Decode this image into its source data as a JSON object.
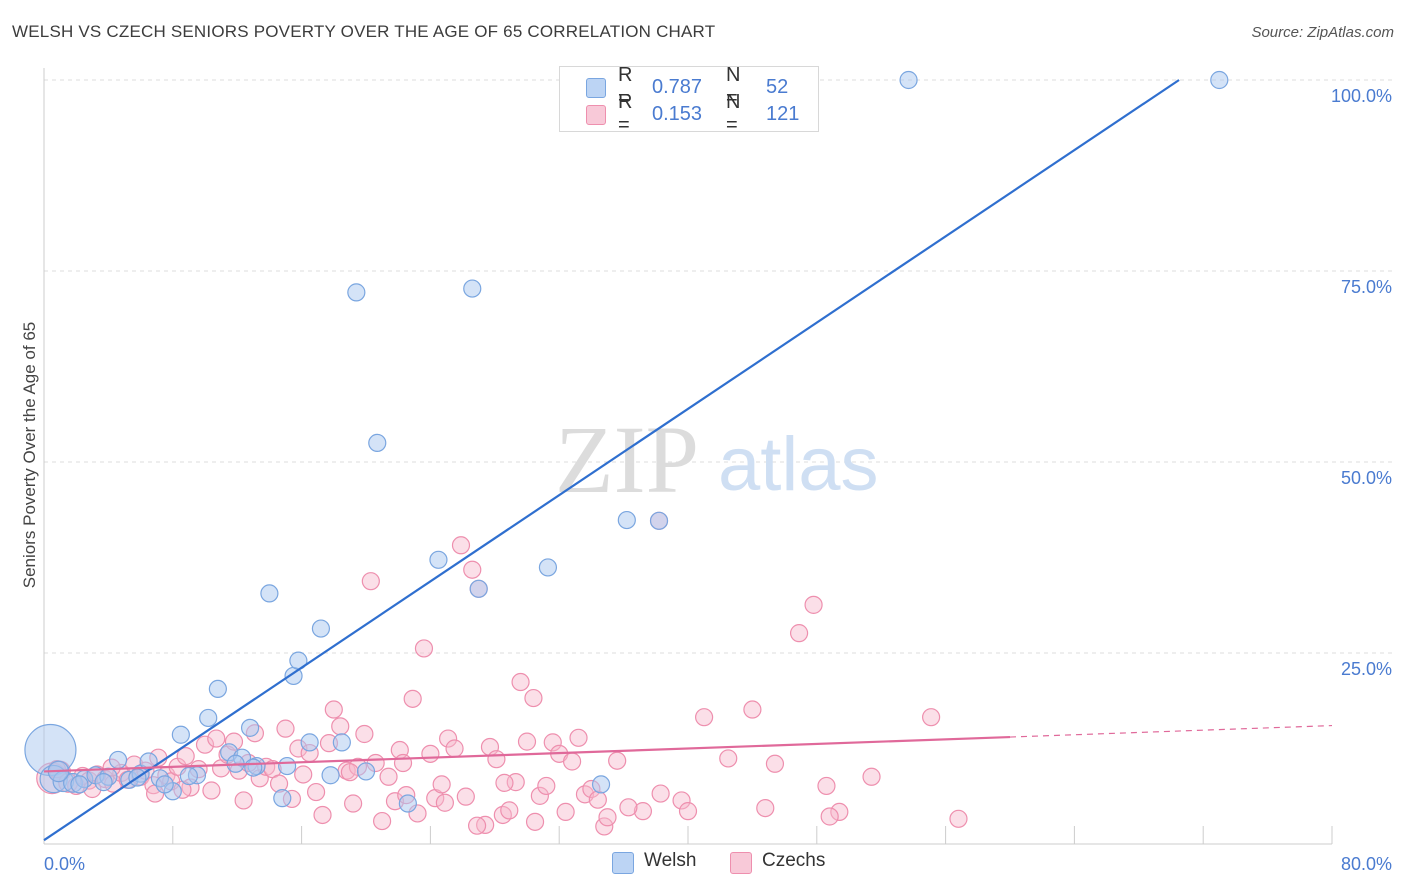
{
  "title": "WELSH VS CZECH SENIORS POVERTY OVER THE AGE OF 65 CORRELATION CHART",
  "source": "Source: ZipAtlas.com",
  "watermark": {
    "zip": "ZIP",
    "atlas": "atlas"
  },
  "legend": {
    "rows": [
      {
        "r_label": "R =",
        "r_value": "0.787",
        "n_label": "N =",
        "n_value": "52"
      },
      {
        "r_label": "R =",
        "r_value": "0.153",
        "n_label": "N =",
        "n_value": "121"
      }
    ]
  },
  "bottom_legend": [
    "Welsh",
    "Czechs"
  ],
  "colors": {
    "welsh_fill": "#a9c7f0",
    "welsh_stroke": "#7aa6e0",
    "welsh_line": "#2f6fcf",
    "czech_fill": "#f6b8cc",
    "czech_stroke": "#ee8fae",
    "czech_line": "#e0699a",
    "tick_label": "#4a7bd0",
    "grid": "#dddddd"
  },
  "chart_data": {
    "type": "scatter",
    "title": "WELSH VS CZECH SENIORS POVERTY OVER THE AGE OF 65 CORRELATION CHART",
    "xlabel": "",
    "ylabel": "Seniors Poverty Over the Age of 65",
    "xlim": [
      0,
      80
    ],
    "ylim": [
      0,
      100
    ],
    "x_tick_labels": [
      "0.0%",
      "80.0%"
    ],
    "y_tick_labels": [
      "25.0%",
      "50.0%",
      "75.0%",
      "100.0%"
    ],
    "y_tick_values": [
      25,
      50,
      75,
      100
    ],
    "grid": true,
    "legend_position": "top-center",
    "series": [
      {
        "name": "Welsh",
        "r": 0.787,
        "n": 52,
        "trend": {
          "x": [
            0,
            70.5
          ],
          "y": [
            0.5,
            100
          ]
        },
        "points": [
          [
            0.4,
            12.3,
            30
          ],
          [
            0.6,
            8.5,
            16
          ],
          [
            1.2,
            8.2,
            12
          ],
          [
            1.8,
            8.0,
            11
          ],
          [
            2.5,
            8.5,
            10
          ],
          [
            3.2,
            9.0,
            10
          ],
          [
            4.0,
            8.8,
            10
          ],
          [
            4.6,
            11.0,
            10
          ],
          [
            5.3,
            8.4,
            10
          ],
          [
            6.0,
            9.2,
            10
          ],
          [
            6.5,
            10.8,
            10
          ],
          [
            7.2,
            8.6,
            10
          ],
          [
            8.0,
            6.9,
            10
          ],
          [
            8.5,
            14.3,
            10
          ],
          [
            9.5,
            9.0,
            10
          ],
          [
            10.2,
            16.5,
            10
          ],
          [
            10.8,
            20.3,
            10
          ],
          [
            11.5,
            12.0,
            10
          ],
          [
            12.3,
            11.3,
            10
          ],
          [
            12.8,
            15.2,
            10
          ],
          [
            13.2,
            10.2,
            10
          ],
          [
            14.0,
            32.8,
            10
          ],
          [
            14.8,
            6.0,
            10
          ],
          [
            15.5,
            22.0,
            10
          ],
          [
            15.8,
            24.0,
            10
          ],
          [
            16.5,
            13.3,
            10
          ],
          [
            17.2,
            28.2,
            10
          ],
          [
            17.8,
            9.0,
            10
          ],
          [
            18.5,
            13.3,
            10
          ],
          [
            19.4,
            72.2,
            10
          ],
          [
            20.0,
            9.5,
            10
          ],
          [
            20.7,
            52.5,
            10
          ],
          [
            22.6,
            5.3,
            10
          ],
          [
            24.5,
            37.2,
            10
          ],
          [
            26.6,
            72.7,
            10
          ],
          [
            27.0,
            33.4,
            10
          ],
          [
            31.3,
            36.2,
            10
          ],
          [
            33.3,
            100.0,
            10
          ],
          [
            34.6,
            7.8,
            10
          ],
          [
            36.2,
            42.4,
            10
          ],
          [
            38.2,
            42.3,
            10
          ],
          [
            53.7,
            100.0,
            10
          ],
          [
            73.0,
            100.0,
            10
          ],
          [
            2.2,
            7.8,
            10
          ],
          [
            7.5,
            7.8,
            10
          ],
          [
            9.0,
            8.9,
            10
          ],
          [
            11.9,
            10.5,
            10
          ],
          [
            13.0,
            10.0,
            10
          ],
          [
            0.9,
            9.5,
            12
          ],
          [
            3.7,
            8.1,
            10
          ],
          [
            5.8,
            8.7,
            10
          ],
          [
            15.1,
            10.2,
            10
          ]
        ]
      },
      {
        "name": "Czechs",
        "r": 0.153,
        "n": 121,
        "trend": {
          "x": [
            0,
            60
          ],
          "y": [
            9.5,
            14.0
          ]
        },
        "trend_dashed": {
          "x": [
            60,
            80
          ],
          "y": [
            14.0,
            15.5
          ]
        },
        "points": [
          [
            0.5,
            8.6,
            18
          ],
          [
            1.0,
            9.5,
            12
          ],
          [
            1.5,
            8.0,
            11
          ],
          [
            2.0,
            7.6,
            10
          ],
          [
            2.4,
            8.9,
            10
          ],
          [
            2.8,
            8.3,
            10
          ],
          [
            3.3,
            9.1,
            10
          ],
          [
            3.8,
            8.5,
            10
          ],
          [
            4.3,
            7.9,
            10
          ],
          [
            4.8,
            9.3,
            10
          ],
          [
            5.2,
            8.4,
            10
          ],
          [
            5.6,
            10.4,
            10
          ],
          [
            6.0,
            8.8,
            10
          ],
          [
            6.3,
            9.6,
            10
          ],
          [
            6.8,
            7.7,
            10
          ],
          [
            7.1,
            11.3,
            10
          ],
          [
            7.6,
            9.0,
            10
          ],
          [
            7.9,
            8.2,
            10
          ],
          [
            8.3,
            10.1,
            10
          ],
          [
            8.8,
            11.5,
            10
          ],
          [
            9.1,
            7.4,
            10
          ],
          [
            9.6,
            9.8,
            10
          ],
          [
            10.0,
            13.0,
            10
          ],
          [
            10.4,
            7.0,
            10
          ],
          [
            10.7,
            13.8,
            10
          ],
          [
            11.0,
            9.9,
            10
          ],
          [
            11.4,
            11.7,
            10
          ],
          [
            11.8,
            13.4,
            10
          ],
          [
            12.1,
            9.6,
            10
          ],
          [
            12.4,
            5.7,
            10
          ],
          [
            12.7,
            10.6,
            10
          ],
          [
            13.1,
            14.5,
            10
          ],
          [
            13.4,
            8.6,
            10
          ],
          [
            13.8,
            10.1,
            10
          ],
          [
            14.2,
            9.8,
            10
          ],
          [
            14.6,
            7.9,
            10
          ],
          [
            15.0,
            15.1,
            10
          ],
          [
            15.4,
            5.9,
            10
          ],
          [
            15.8,
            12.5,
            10
          ],
          [
            16.1,
            9.1,
            10
          ],
          [
            16.5,
            11.9,
            10
          ],
          [
            16.9,
            6.8,
            10
          ],
          [
            17.3,
            3.8,
            10
          ],
          [
            17.7,
            13.2,
            10
          ],
          [
            18.0,
            17.6,
            10
          ],
          [
            18.4,
            15.4,
            10
          ],
          [
            18.8,
            9.6,
            10
          ],
          [
            19.2,
            5.3,
            10
          ],
          [
            19.5,
            10.1,
            10
          ],
          [
            19.9,
            14.4,
            10
          ],
          [
            20.3,
            34.4,
            10
          ],
          [
            20.6,
            10.6,
            10
          ],
          [
            21.0,
            3.0,
            10
          ],
          [
            21.4,
            8.8,
            10
          ],
          [
            21.8,
            5.6,
            10
          ],
          [
            22.1,
            12.3,
            10
          ],
          [
            22.5,
            6.4,
            10
          ],
          [
            22.9,
            19.0,
            10
          ],
          [
            23.2,
            4.0,
            10
          ],
          [
            23.6,
            25.6,
            10
          ],
          [
            24.0,
            11.8,
            10
          ],
          [
            24.3,
            6.0,
            10
          ],
          [
            24.7,
            7.8,
            10
          ],
          [
            25.1,
            13.8,
            10
          ],
          [
            25.5,
            12.5,
            10
          ],
          [
            25.9,
            39.1,
            10
          ],
          [
            26.2,
            6.2,
            10
          ],
          [
            26.6,
            35.9,
            10
          ],
          [
            27.0,
            33.4,
            10
          ],
          [
            27.4,
            2.5,
            10
          ],
          [
            27.7,
            12.7,
            10
          ],
          [
            28.1,
            11.1,
            10
          ],
          [
            28.5,
            3.8,
            10
          ],
          [
            28.9,
            4.4,
            10
          ],
          [
            29.3,
            8.1,
            10
          ],
          [
            29.6,
            21.2,
            10
          ],
          [
            30.0,
            13.4,
            10
          ],
          [
            30.4,
            19.1,
            10
          ],
          [
            30.8,
            6.3,
            10
          ],
          [
            31.2,
            7.6,
            10
          ],
          [
            31.6,
            13.3,
            10
          ],
          [
            32.0,
            11.8,
            10
          ],
          [
            32.4,
            4.2,
            10
          ],
          [
            32.8,
            10.8,
            10
          ],
          [
            33.2,
            13.9,
            10
          ],
          [
            33.6,
            6.5,
            10
          ],
          [
            34.0,
            7.2,
            10
          ],
          [
            34.4,
            5.8,
            10
          ],
          [
            34.8,
            2.3,
            10
          ],
          [
            35.6,
            10.9,
            10
          ],
          [
            37.2,
            4.3,
            10
          ],
          [
            38.2,
            42.3,
            10
          ],
          [
            39.6,
            5.7,
            10
          ],
          [
            41.0,
            16.6,
            10
          ],
          [
            42.5,
            11.2,
            10
          ],
          [
            44.0,
            17.6,
            10
          ],
          [
            45.4,
            10.5,
            10
          ],
          [
            46.9,
            27.6,
            10
          ],
          [
            47.8,
            31.3,
            10
          ],
          [
            48.6,
            7.6,
            10
          ],
          [
            49.4,
            4.2,
            10
          ],
          [
            51.4,
            8.8,
            10
          ],
          [
            55.1,
            16.6,
            10
          ],
          [
            56.8,
            3.3,
            10
          ],
          [
            35.0,
            3.5,
            10
          ],
          [
            40.0,
            4.3,
            10
          ],
          [
            44.8,
            4.7,
            10
          ],
          [
            48.8,
            3.6,
            10
          ],
          [
            36.3,
            4.8,
            10
          ],
          [
            38.3,
            6.6,
            10
          ],
          [
            30.5,
            2.9,
            10
          ],
          [
            26.9,
            2.4,
            10
          ],
          [
            3.0,
            7.2,
            10
          ],
          [
            4.2,
            10.0,
            10
          ],
          [
            0.8,
            9.8,
            10
          ],
          [
            6.9,
            6.6,
            10
          ],
          [
            8.6,
            7.1,
            10
          ],
          [
            19.0,
            9.4,
            10
          ],
          [
            22.3,
            10.6,
            10
          ],
          [
            24.9,
            5.4,
            10
          ],
          [
            28.6,
            8.0,
            10
          ]
        ]
      }
    ]
  }
}
